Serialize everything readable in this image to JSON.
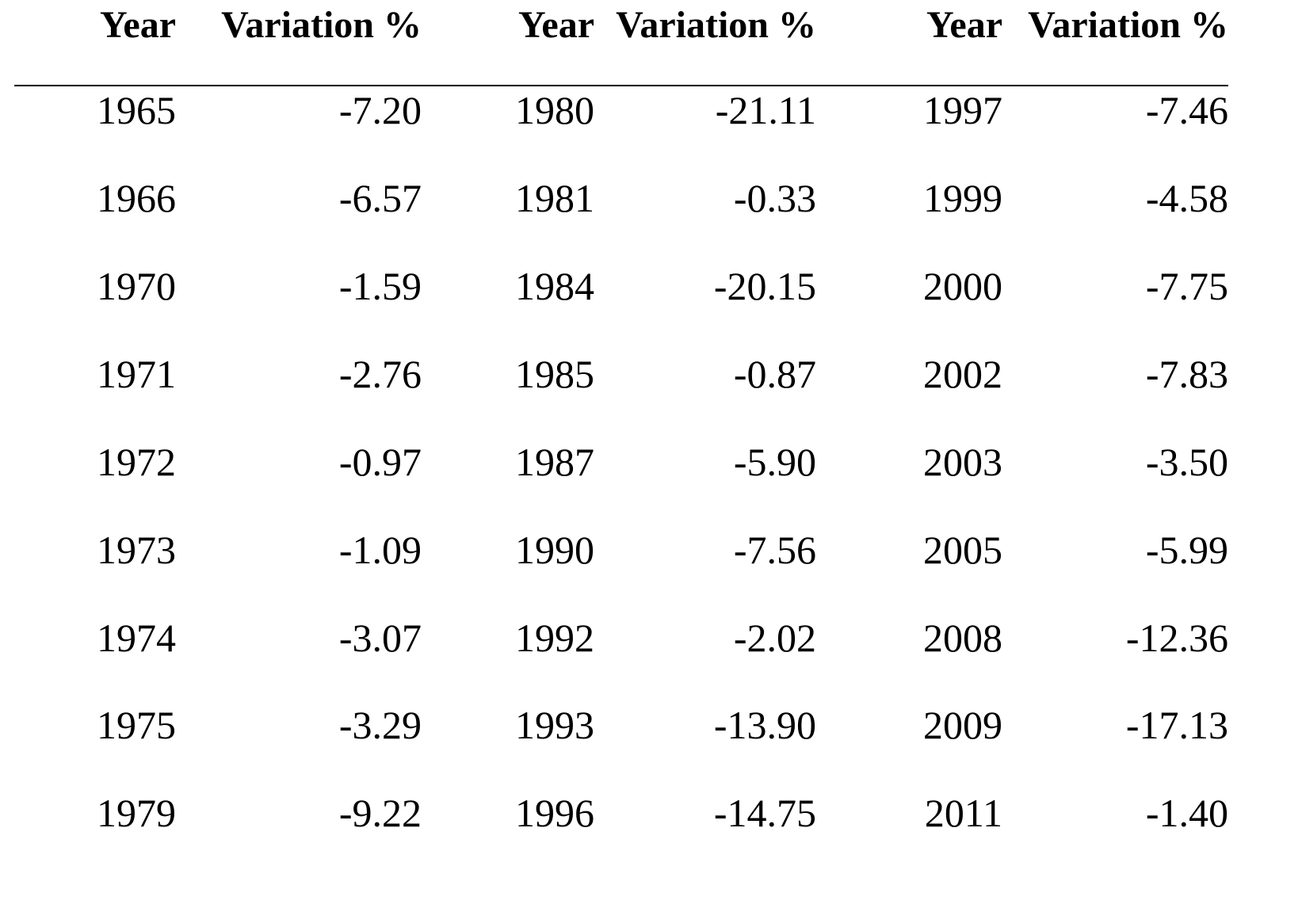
{
  "table": {
    "headers": [
      {
        "year": "Year",
        "variation": "Variation %"
      },
      {
        "year": "Year",
        "variation": "Variation %"
      },
      {
        "year": "Year",
        "variation": "Variation %"
      }
    ],
    "columns": [
      {
        "rows": [
          {
            "year": "1965",
            "variation": "-7.20"
          },
          {
            "year": "1966",
            "variation": "-6.57"
          },
          {
            "year": "1970",
            "variation": "-1.59"
          },
          {
            "year": "1971",
            "variation": "-2.76"
          },
          {
            "year": "1972",
            "variation": "-0.97"
          },
          {
            "year": "1973",
            "variation": "-1.09"
          },
          {
            "year": "1974",
            "variation": "-3.07"
          },
          {
            "year": "1975",
            "variation": "-3.29"
          },
          {
            "year": "1979",
            "variation": "-9.22"
          }
        ]
      },
      {
        "rows": [
          {
            "year": "1980",
            "variation": "-21.11"
          },
          {
            "year": "1981",
            "variation": "-0.33"
          },
          {
            "year": "1984",
            "variation": "-20.15"
          },
          {
            "year": "1985",
            "variation": "-0.87"
          },
          {
            "year": "1987",
            "variation": "-5.90"
          },
          {
            "year": "1990",
            "variation": "-7.56"
          },
          {
            "year": "1992",
            "variation": "-2.02"
          },
          {
            "year": "1993",
            "variation": "-13.90"
          },
          {
            "year": "1996",
            "variation": "-14.75"
          }
        ]
      },
      {
        "rows": [
          {
            "year": "1997",
            "variation": "-7.46"
          },
          {
            "year": "1999",
            "variation": "-4.58"
          },
          {
            "year": "2000",
            "variation": "-7.75"
          },
          {
            "year": "2002",
            "variation": "-7.83"
          },
          {
            "year": "2003",
            "variation": "-3.50"
          },
          {
            "year": "2005",
            "variation": "-5.99"
          },
          {
            "year": "2008",
            "variation": "-12.36"
          },
          {
            "year": "2009",
            "variation": "-17.13"
          },
          {
            "year": "2011",
            "variation": "-1.40"
          }
        ]
      }
    ]
  }
}
